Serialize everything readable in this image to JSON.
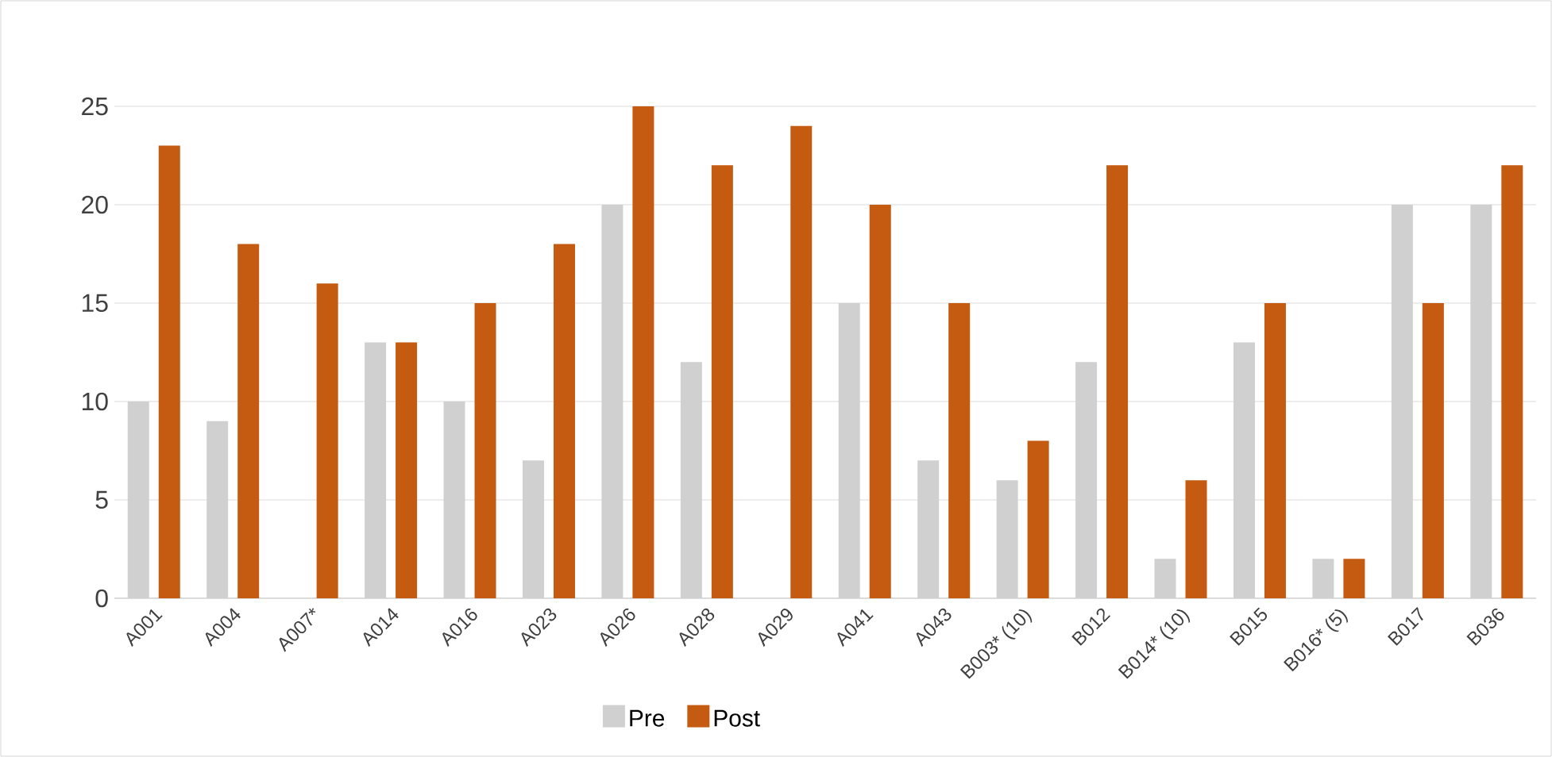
{
  "chart_data": {
    "type": "bar",
    "categories": [
      "A001",
      "A004",
      "A007*",
      "A014",
      "A016",
      "A023",
      "A026",
      "A028",
      "A029",
      "A041",
      "A043",
      "B003* (10)",
      "B012",
      "B014* (10)",
      "B015",
      "B016* (5)",
      "B017",
      "B036"
    ],
    "series": [
      {
        "name": "Pre",
        "color": "#d0d0d0",
        "values": [
          10,
          9,
          null,
          13,
          10,
          7,
          20,
          12,
          null,
          15,
          7,
          6,
          12,
          2,
          13,
          2,
          20,
          20
        ]
      },
      {
        "name": "Post",
        "color": "#c55a11",
        "values": [
          23,
          18,
          16,
          13,
          15,
          18,
          25,
          22,
          24,
          20,
          15,
          8,
          22,
          6,
          15,
          2,
          15,
          22
        ]
      }
    ],
    "ylim": [
      0,
      25
    ],
    "yticks": [
      0,
      5,
      10,
      15,
      20,
      25
    ],
    "grid": "y",
    "legend": "bottom"
  }
}
